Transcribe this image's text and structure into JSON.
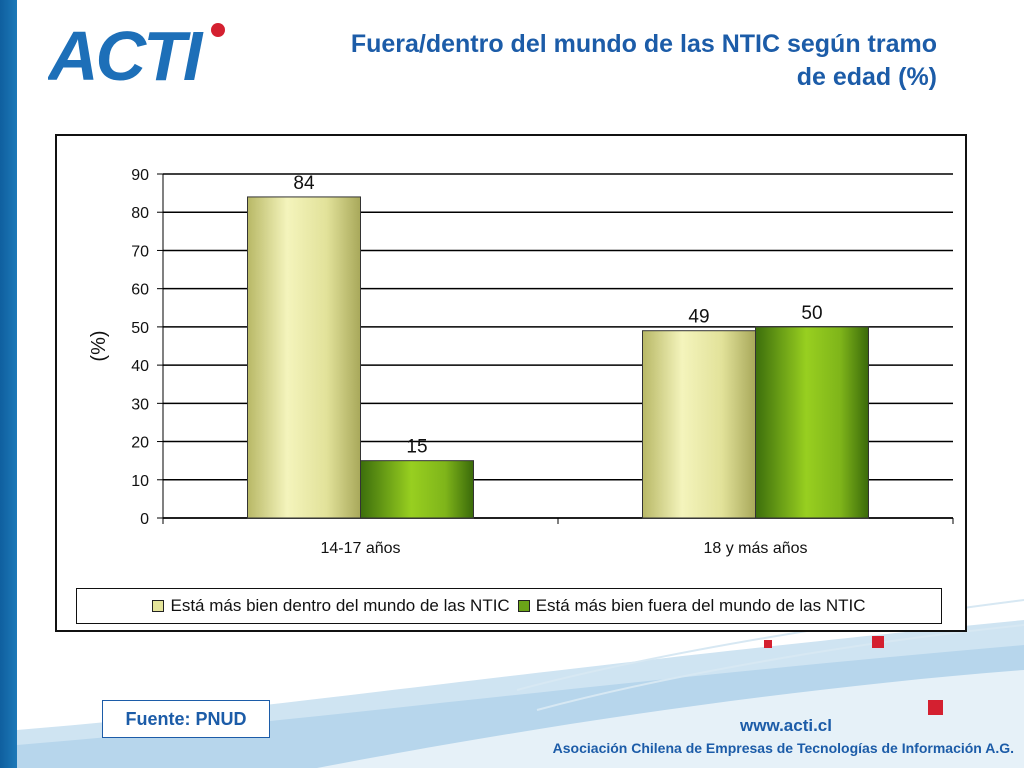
{
  "header": {
    "logo_text": "ACTI",
    "title_line1": "Fuera/dentro del mundo de las NTIC según tramo",
    "title_line2": "de edad (%)"
  },
  "chart_data": {
    "type": "bar",
    "title": "",
    "categories": [
      "14-17 años",
      "18 y más años"
    ],
    "series": [
      {
        "name": "Está más bien dentro del mundo de las NTIC",
        "values": [
          84,
          49
        ]
      },
      {
        "name": "Está más bien fuera del mundo de las NTIC",
        "values": [
          15,
          50
        ]
      }
    ],
    "ylabel": "(%)",
    "xlabel": "",
    "ylim": [
      0,
      90
    ],
    "yticks": [
      0,
      10,
      20,
      30,
      40,
      50,
      60,
      70,
      80,
      90
    ],
    "grid": true,
    "legend": "bottom",
    "colors": [
      "#e4e49a",
      "#7fb51a"
    ]
  },
  "footer": {
    "source": "Fuente: PNUD",
    "url": "www.acti.cl",
    "org": "Asociación Chilena de Empresas de Tecnologías de Información A.G."
  }
}
